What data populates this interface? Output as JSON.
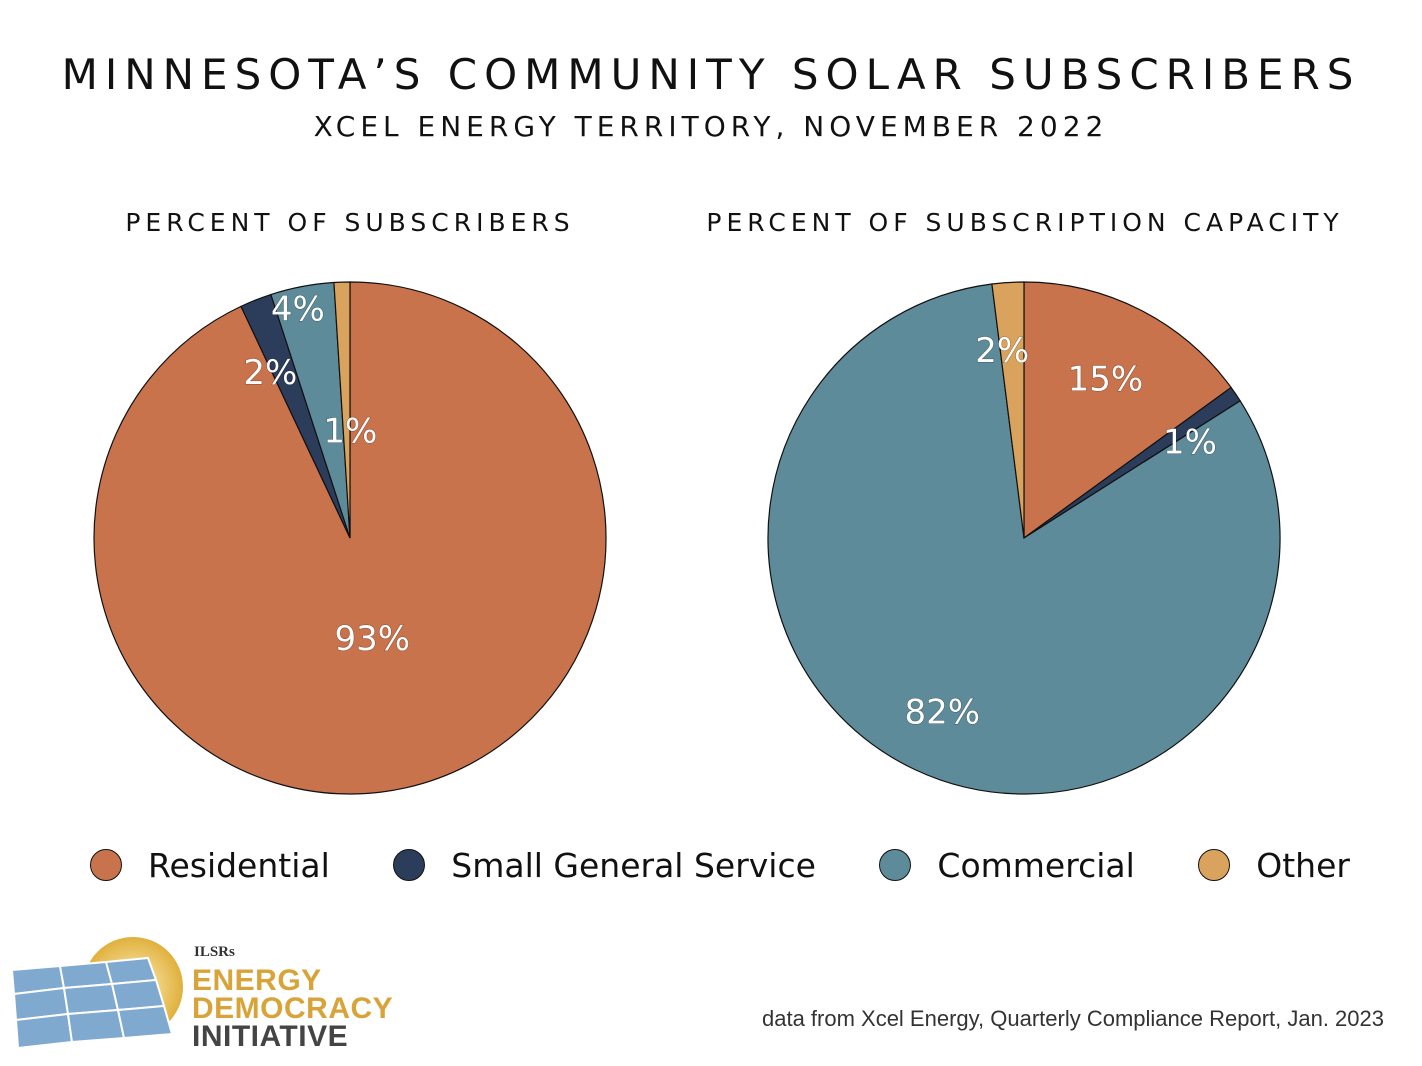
{
  "header": {
    "title": "MINNESOTA’S COMMUNITY SOLAR SUBSCRIBERS",
    "subtitle": "XCEL ENERGY TERRITORY, NOVEMBER 2022"
  },
  "colors": {
    "Residential": "#c9734c",
    "Small General Service": "#2b3d5b",
    "Commercial": "#5e8b9a",
    "Other": "#d9a35e"
  },
  "chart_data": [
    {
      "type": "pie",
      "title": "PERCENT OF SUBSCRIBERS",
      "categories": [
        "Residential",
        "Small General Service",
        "Commercial",
        "Other"
      ],
      "values": [
        93,
        2,
        4,
        1
      ],
      "data_labels": [
        "93%",
        "2%",
        "4%",
        "1%"
      ],
      "start": "12 o'clock",
      "direction": "clockwise"
    },
    {
      "type": "pie",
      "title": "PERCENT OF SUBSCRIPTION CAPACITY",
      "categories": [
        "Residential",
        "Small General Service",
        "Commercial",
        "Other"
      ],
      "values": [
        15,
        1,
        82,
        2
      ],
      "data_labels": [
        "15%",
        "1%",
        "82%",
        "2%"
      ],
      "start": "12 o'clock",
      "direction": "clockwise"
    }
  ],
  "legend": {
    "placement": "bottom",
    "items": [
      "Residential",
      "Small General Service",
      "Commercial",
      "Other"
    ]
  },
  "source_note": "data from Xcel Energy, Quarterly Compliance Report, Jan. 2023",
  "logo": {
    "line0": "ILSRs",
    "line1": "ENERGY",
    "line2": "DEMOCRACY",
    "line3": "INITIATIVE"
  }
}
